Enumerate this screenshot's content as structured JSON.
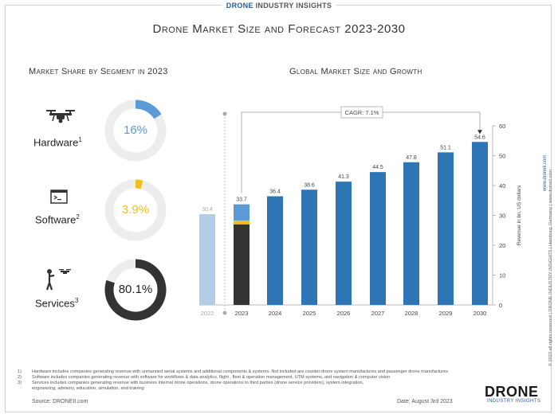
{
  "brand_top": {
    "part1": "DRONE",
    "part2": " INDUSTRY INSIGHTS"
  },
  "main_title": "Drone Market Size and Forecast 2023-2030",
  "left_title": "Market Share by Segment in 2023",
  "right_title": "Global Market Size and Growth",
  "segments": [
    {
      "label": "Hardware",
      "sup": "1",
      "value_label": "16%",
      "share": 16,
      "color": "#5b9bd5",
      "icon": "drone-icon"
    },
    {
      "label": "Software",
      "sup": "2",
      "value_label": "3.9%",
      "share": 3.9,
      "color": "#f2c01e",
      "icon": "terminal-icon"
    },
    {
      "label": "Services",
      "sup": "3",
      "value_label": "80.1%",
      "share": 80.1,
      "color": "#333333",
      "icon": "operator-icon"
    }
  ],
  "chart_data": {
    "type": "bar",
    "categories": [
      "2022",
      "2023",
      "2024",
      "2025",
      "2026",
      "2027",
      "2028",
      "2029",
      "2030"
    ],
    "values": [
      30.4,
      33.7,
      36.4,
      38.6,
      41.3,
      44.5,
      47.8,
      51.1,
      54.6
    ],
    "value_labels": [
      "30.4",
      "33.7",
      "36.4",
      "38.6",
      "41.3",
      "44.5",
      "47.8",
      "51.1",
      "54.6"
    ],
    "stack_2023": [
      {
        "name": "Services",
        "value": 27.0,
        "color": "#333333"
      },
      {
        "name": "Software",
        "value": 1.3,
        "color": "#f2c01e"
      },
      {
        "name": "Hardware",
        "value": 5.4,
        "color": "#5b9bd5"
      }
    ],
    "colors": {
      "bar": "#2e75b6",
      "bar_2022": "#b4cde6"
    },
    "ylabel": "Revenue in bn. US dollars",
    "ylim": [
      0,
      60
    ],
    "yticks": [
      0,
      10,
      20,
      30,
      40,
      50,
      60
    ],
    "annotation": "CAGR: 7.1%",
    "axis_position": "right"
  },
  "footnotes": [
    {
      "num": "1)",
      "text": "Hardware includes companies generating revenue with unmanned aerial systems and additional components & systems. Not included are counter-drone system manufactures and passenger drone manufactures"
    },
    {
      "num": "2)",
      "text": "Software includes companies generating revenue with software for workflows & data analytics, flight , fleet & operation management, UTM systems, and navigation & computer vision"
    },
    {
      "num": "3)",
      "text": "Services includes companies generating revenue with business internal drone operations, drone operations to third parties (drone service providers), system integration,"
    },
    {
      "num": "",
      "text": "engineering, advisory, education, simulation, and training"
    }
  ],
  "source": "Source: DRONEII.com",
  "date": "Date: August 3rd 2023",
  "logo": {
    "big": "DRONE",
    "small": "INDUSTRY INSIGHTS"
  },
  "vertical_copyright": "© 2023 all rights reserved | DRONE INDUSTRY INSIGHTS | Hamburg, Germany | www.droneii.com",
  "vertical_link": "www.droneii.com"
}
